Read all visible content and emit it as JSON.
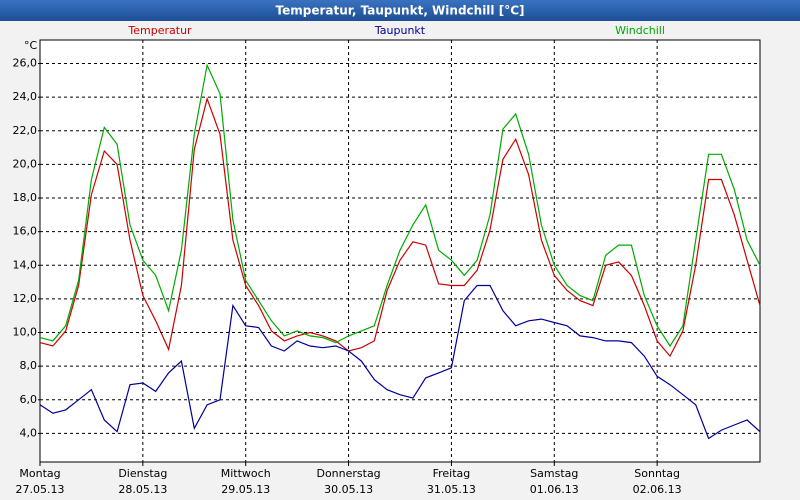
{
  "chart_data": {
    "type": "line",
    "title": "Temperatur, Taupunkt, Windchill [°C]",
    "y_unit": "°C",
    "series": [
      {
        "name": "Temperatur",
        "color": "#cc0000",
        "values": [
          9.4,
          9.2,
          10.1,
          12.8,
          18.2,
          20.8,
          20.0,
          15.5,
          12.2,
          10.7,
          9.0,
          12.8,
          20.9,
          23.9,
          21.8,
          15.5,
          12.8,
          11.6,
          10.1,
          9.5,
          9.8,
          10.0,
          9.8,
          9.5,
          8.9,
          9.1,
          9.5,
          12.5,
          14.3,
          15.4,
          15.2,
          12.9,
          12.8,
          12.8,
          13.7,
          16.1,
          20.3,
          21.5,
          19.4,
          15.5,
          13.4,
          12.5,
          11.9,
          11.6,
          14.0,
          14.2,
          13.4,
          11.6,
          9.5,
          8.6,
          10.1,
          14.0,
          19.1,
          19.1,
          17.0,
          14.3,
          11.6
        ]
      },
      {
        "name": "Taupunkt",
        "color": "#000099",
        "values": [
          5.7,
          5.2,
          5.4,
          6.0,
          6.6,
          4.8,
          4.1,
          6.9,
          7.0,
          6.5,
          7.6,
          8.3,
          4.3,
          5.7,
          6.0,
          11.6,
          10.4,
          10.3,
          9.2,
          8.9,
          9.5,
          9.2,
          9.1,
          9.2,
          8.9,
          8.3,
          7.2,
          6.6,
          6.3,
          6.1,
          7.3,
          7.6,
          7.9,
          11.9,
          12.8,
          12.8,
          11.3,
          10.4,
          10.7,
          10.8,
          10.6,
          10.4,
          9.8,
          9.7,
          9.5,
          9.5,
          9.4,
          8.6,
          7.4,
          6.9,
          6.3,
          5.7,
          3.7,
          4.2,
          4.5,
          4.8,
          4.1
        ]
      },
      {
        "name": "Windchill",
        "color": "#00aa00",
        "values": [
          9.7,
          9.5,
          10.4,
          13.1,
          19.1,
          22.2,
          21.2,
          16.4,
          14.3,
          13.4,
          11.3,
          14.9,
          21.8,
          25.9,
          24.2,
          16.7,
          13.1,
          11.9,
          10.7,
          9.8,
          10.1,
          9.8,
          9.7,
          9.4,
          9.8,
          10.1,
          10.4,
          12.8,
          14.9,
          16.4,
          17.6,
          14.9,
          14.3,
          13.4,
          14.3,
          17.0,
          22.1,
          23.0,
          20.6,
          16.4,
          14.0,
          12.8,
          12.2,
          11.9,
          14.6,
          15.2,
          15.2,
          12.2,
          10.4,
          9.2,
          10.4,
          15.5,
          20.6,
          20.6,
          18.5,
          15.5,
          14.0
        ]
      }
    ],
    "xlim": [
      0,
      56
    ],
    "xticks": [
      {
        "value": 0,
        "label": "Montag"
      },
      {
        "value": 8,
        "label": "Dienstag"
      },
      {
        "value": 16,
        "label": "Mittwoch"
      },
      {
        "value": 24,
        "label": "Donnerstag"
      },
      {
        "value": 32,
        "label": "Freitag"
      },
      {
        "value": 40,
        "label": "Samstag"
      },
      {
        "value": 48,
        "label": "Sonntag"
      }
    ],
    "xtick_dates": [
      "27.05.13",
      "28.05.13",
      "29.05.13",
      "30.05.13",
      "31.05.13",
      "01.06.13",
      "02.06.13"
    ],
    "ylim": [
      2.3,
      27.4
    ],
    "yticks": [
      {
        "value": 4,
        "label": "4,0"
      },
      {
        "value": 6,
        "label": "6,0"
      },
      {
        "value": 8,
        "label": "8,0"
      },
      {
        "value": 10,
        "label": "10,0"
      },
      {
        "value": 12,
        "label": "12,0"
      },
      {
        "value": 14,
        "label": "14,0"
      },
      {
        "value": 16,
        "label": "16,0"
      },
      {
        "value": 18,
        "label": "18,0"
      },
      {
        "value": 20,
        "label": "20,0"
      },
      {
        "value": 22,
        "label": "22,0"
      },
      {
        "value": 24,
        "label": "24,0"
      },
      {
        "value": 26,
        "label": "26,0"
      }
    ],
    "grid": true
  }
}
